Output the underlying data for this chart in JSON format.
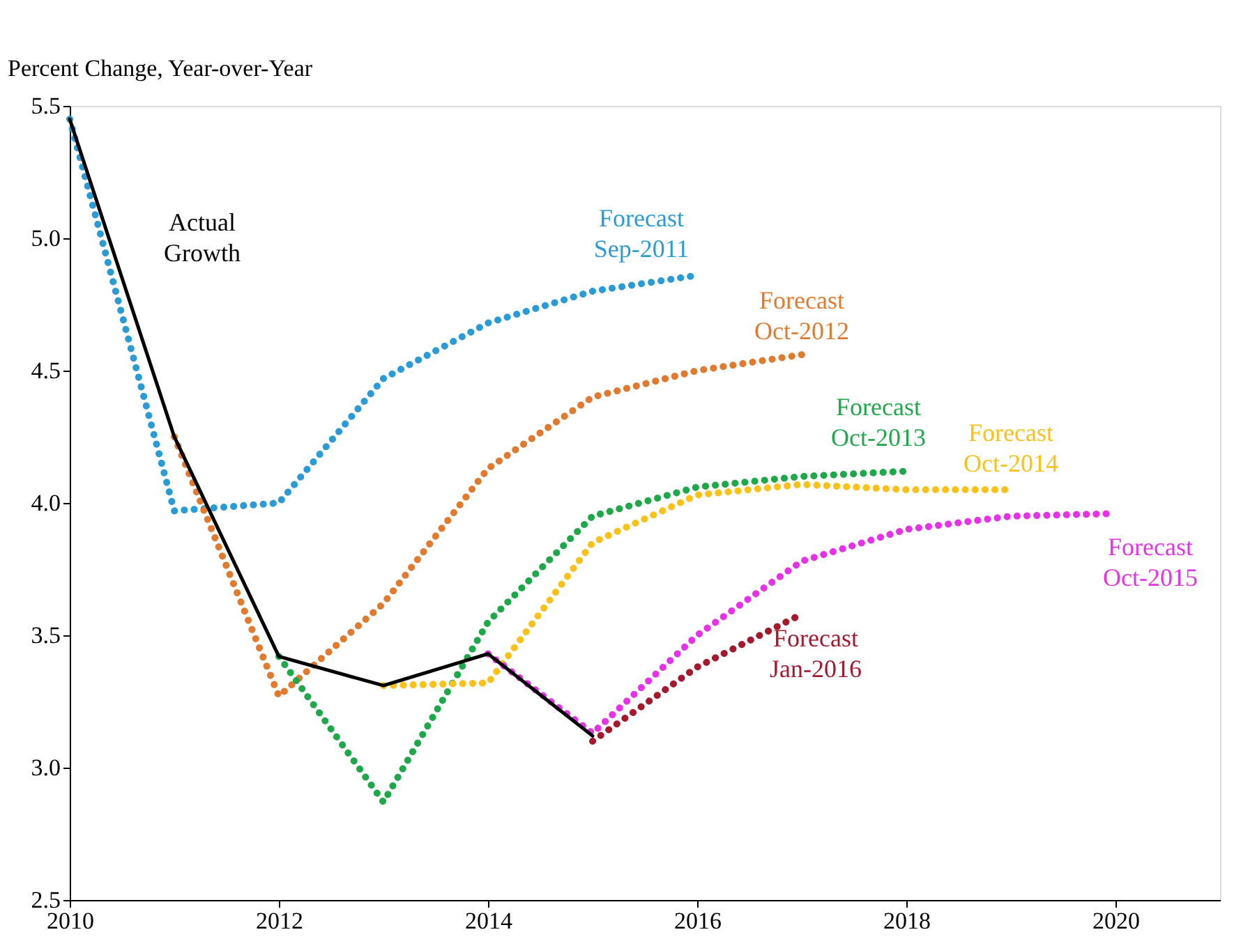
{
  "chart_data": {
    "type": "line",
    "ylabel": "Percent Change, Year-over-Year",
    "xlim": [
      2010,
      2021
    ],
    "xticks": [
      2010,
      2012,
      2014,
      2016,
      2018,
      2020
    ],
    "ylim": [
      2.5,
      5.5
    ],
    "yticks": [
      {
        "value": 2.5,
        "label": "2.5"
      },
      {
        "value": 3,
        "label": "3.0"
      },
      {
        "value": 3.5,
        "label": "3.5"
      },
      {
        "value": 4,
        "label": "4.0"
      },
      {
        "value": 4.5,
        "label": "4.5"
      },
      {
        "value": 5,
        "label": "5.0"
      },
      {
        "value": 5.5,
        "label": "5.5"
      }
    ],
    "grid": false,
    "marker": "none",
    "series": [
      {
        "name": "Forecast Sep-2011",
        "color": "#2b9bd6",
        "line_style": "dotted",
        "x": [
          2010,
          2011,
          2012,
          2013,
          2014,
          2015,
          2016
        ],
        "values": [
          5.45,
          3.97,
          4.0,
          4.47,
          4.68,
          4.8,
          4.86
        ]
      },
      {
        "name": "Forecast Oct-2012",
        "color": "#e07a2e",
        "line_style": "dotted",
        "x": [
          2011,
          2012,
          2013,
          2014,
          2015,
          2016,
          2017
        ],
        "values": [
          4.25,
          3.27,
          3.62,
          4.13,
          4.4,
          4.5,
          4.56
        ]
      },
      {
        "name": "Forecast Oct-2013",
        "color": "#1ea84a",
        "line_style": "dotted",
        "x": [
          2012,
          2013,
          2014,
          2015,
          2016,
          2017,
          2018
        ],
        "values": [
          3.42,
          2.87,
          3.55,
          3.95,
          4.06,
          4.1,
          4.12
        ]
      },
      {
        "name": "Forecast Oct-2014",
        "color": "#f9c11a",
        "line_style": "dotted",
        "x": [
          2013,
          2014,
          2015,
          2016,
          2017,
          2018,
          2019
        ],
        "values": [
          3.31,
          3.32,
          3.85,
          4.03,
          4.07,
          4.05,
          4.05
        ]
      },
      {
        "name": "Forecast Oct-2015",
        "color": "#e632e6",
        "line_style": "dotted",
        "x": [
          2014,
          2015,
          2016,
          2017,
          2018,
          2019,
          2020
        ],
        "values": [
          3.43,
          3.13,
          3.5,
          3.78,
          3.9,
          3.95,
          3.96
        ]
      },
      {
        "name": "Forecast Jan-2016",
        "color": "#a3192e",
        "line_style": "dotted",
        "x": [
          2015,
          2016,
          2017
        ],
        "values": [
          3.1,
          3.38,
          3.58
        ]
      },
      {
        "name": "Actual Growth",
        "color": "#000000",
        "line_style": "solid",
        "x": [
          2010,
          2011,
          2012,
          2013,
          2014,
          2015
        ],
        "values": [
          5.45,
          4.25,
          3.42,
          3.31,
          3.43,
          3.12
        ]
      }
    ]
  }
}
